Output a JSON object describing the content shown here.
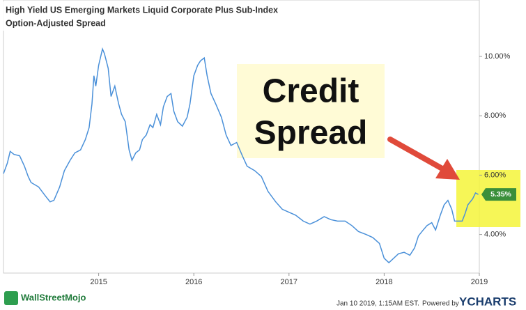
{
  "chart_data": {
    "type": "line",
    "title": "High Yield US Emerging Markets Liquid Corporate Plus Sub-Index",
    "subtitle": "Option-Adjusted Spread",
    "annotations": [
      "Credit",
      "Spread"
    ],
    "footer": {
      "timestamp": "Jan 10 2019, 1:15AM EST.",
      "powered": "Powered by",
      "brand": "YCHARTS",
      "logo": "WallStreetMojo"
    },
    "xlim": [
      2014,
      2019
    ],
    "xticks": [
      2015,
      2016,
      2017,
      2018,
      2019
    ],
    "ylim": [
      2.7,
      11.9
    ],
    "yticks": [
      {
        "value": 4,
        "label": "4.00%"
      },
      {
        "value": 6,
        "label": "6.00%"
      },
      {
        "value": 8,
        "label": "8.00%"
      },
      {
        "value": 10,
        "label": "10.00%"
      }
    ],
    "grid": false,
    "x": [
      2014.0,
      2014.04,
      2014.07,
      2014.11,
      2014.17,
      2014.22,
      2014.26,
      2014.29,
      2014.37,
      2014.44,
      2014.49,
      2014.53,
      2014.59,
      2014.64,
      2014.7,
      2014.75,
      2014.81,
      2014.86,
      2014.9,
      2014.93,
      2014.95,
      2014.97,
      2015.0,
      2015.04,
      2015.06,
      2015.1,
      2015.13,
      2015.17,
      2015.21,
      2015.24,
      2015.28,
      2015.32,
      2015.35,
      2015.39,
      2015.43,
      2015.46,
      2015.5,
      2015.54,
      2015.57,
      2015.61,
      2015.65,
      2015.68,
      2015.72,
      2015.76,
      2015.79,
      2015.83,
      2015.88,
      2015.93,
      2015.96,
      2016.0,
      2016.04,
      2016.07,
      2016.11,
      2016.14,
      2016.18,
      2016.23,
      2016.29,
      2016.34,
      2016.39,
      2016.45,
      2016.51,
      2016.56,
      2016.64,
      2016.71,
      2016.78,
      2016.86,
      2016.93,
      2017.0,
      2017.07,
      2017.15,
      2017.22,
      2017.29,
      2017.37,
      2017.44,
      2017.51,
      2017.59,
      2017.66,
      2017.73,
      2017.81,
      2017.88,
      2017.95,
      2018.0,
      2018.05,
      2018.1,
      2018.15,
      2018.21,
      2018.27,
      2018.32,
      2018.36,
      2018.41,
      2018.45,
      2018.5,
      2018.54,
      2018.59,
      2018.63,
      2018.67,
      2018.71,
      2018.74,
      2018.78,
      2018.82,
      2018.85,
      2018.88,
      2018.93,
      2018.96,
      2018.99
    ],
    "series": [
      {
        "color": "#4a90d9",
        "values": [
          6.05,
          6.4,
          6.8,
          6.7,
          6.65,
          6.3,
          5.95,
          5.75,
          5.6,
          5.3,
          5.1,
          5.15,
          5.6,
          6.15,
          6.5,
          6.75,
          6.85,
          7.2,
          7.6,
          8.4,
          9.35,
          9.0,
          9.7,
          10.25,
          10.1,
          9.6,
          8.65,
          9.0,
          8.4,
          8.05,
          7.8,
          6.85,
          6.5,
          6.75,
          6.85,
          7.2,
          7.35,
          7.7,
          7.6,
          8.05,
          7.7,
          8.3,
          8.65,
          8.75,
          8.15,
          7.8,
          7.65,
          7.95,
          8.4,
          9.35,
          9.7,
          9.85,
          9.95,
          9.35,
          8.75,
          8.4,
          7.95,
          7.35,
          7.0,
          7.1,
          6.65,
          6.3,
          6.15,
          5.95,
          5.45,
          5.1,
          4.85,
          4.75,
          4.65,
          4.45,
          4.35,
          4.45,
          4.6,
          4.5,
          4.45,
          4.45,
          4.3,
          4.1,
          4.0,
          3.9,
          3.7,
          3.2,
          3.05,
          3.2,
          3.35,
          3.4,
          3.3,
          3.55,
          3.95,
          4.15,
          4.3,
          4.4,
          4.15,
          4.65,
          5.0,
          5.15,
          4.85,
          4.45,
          4.45,
          4.45,
          4.7,
          5.0,
          5.2,
          5.4,
          5.35
        ],
        "value_labels": [
          null,
          null,
          null,
          null,
          null,
          null,
          null,
          null,
          null,
          null,
          null,
          null,
          null,
          null,
          null,
          null,
          null,
          null,
          null,
          null,
          null,
          null,
          null,
          null,
          null,
          null,
          null,
          null,
          null,
          null,
          null,
          null,
          null,
          null,
          null,
          null,
          null,
          null,
          null,
          null,
          null,
          null,
          null,
          null,
          null,
          null,
          null,
          null,
          null,
          null,
          null,
          null,
          null,
          null,
          null,
          null,
          null,
          null,
          null,
          null,
          null,
          null,
          null,
          null,
          null,
          null,
          null,
          null,
          null,
          null,
          null,
          null,
          null,
          null,
          null,
          null,
          null,
          null,
          null,
          null,
          null,
          null,
          null,
          null,
          null,
          null,
          null,
          null,
          null,
          null,
          null,
          null,
          null,
          null,
          null,
          null,
          null,
          null,
          null,
          null,
          null,
          null,
          null,
          null,
          "5.35%"
        ]
      }
    ]
  }
}
